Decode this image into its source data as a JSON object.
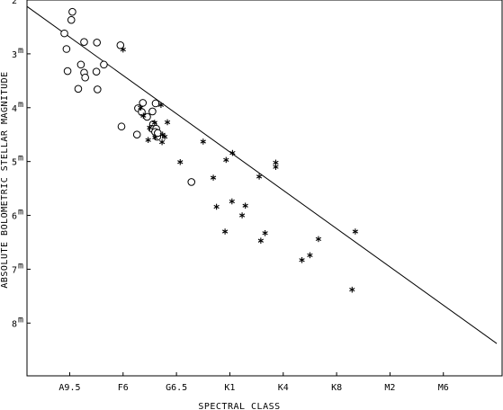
{
  "chart_data": {
    "type": "scatter",
    "title": "",
    "xlabel": "SPECTRAL CLASS",
    "ylabel": "ABSOLUTE BOLOMETRIC STELLAR MAGNITUDE",
    "x_ticks": [
      "A9.5",
      "F6",
      "G6.5",
      "K1",
      "K4",
      "K8",
      "M2",
      "M6"
    ],
    "x_range": [
      -0.8,
      8.1
    ],
    "y_ticks": [
      {
        "value": 2,
        "label": "2",
        "unit": "m"
      },
      {
        "value": 3,
        "label": "3",
        "unit": "m"
      },
      {
        "value": 4,
        "label": "4",
        "unit": "m"
      },
      {
        "value": 5,
        "label": "5",
        "unit": "m"
      },
      {
        "value": 6,
        "label": "6",
        "unit": "m"
      },
      {
        "value": 7,
        "label": "7",
        "unit": "m"
      },
      {
        "value": 8,
        "label": "8",
        "unit": "m"
      }
    ],
    "y_range": [
      2.0,
      8.98
    ],
    "y_inverted": true,
    "grid": false,
    "series": [
      {
        "marker": "circle",
        "points": [
          [
            0.05,
            2.22
          ],
          [
            0.03,
            2.37
          ],
          [
            -0.1,
            2.62
          ],
          [
            -0.06,
            2.91
          ],
          [
            -0.04,
            3.32
          ],
          [
            0.21,
            3.2
          ],
          [
            0.27,
            3.35
          ],
          [
            0.29,
            3.44
          ],
          [
            0.16,
            3.65
          ],
          [
            0.5,
            3.33
          ],
          [
            0.52,
            3.66
          ],
          [
            0.64,
            3.2
          ],
          [
            0.27,
            2.78
          ],
          [
            0.51,
            2.79
          ],
          [
            0.95,
            2.84
          ],
          [
            1.37,
            3.91
          ],
          [
            1.61,
            3.92
          ],
          [
            1.28,
            4.01
          ],
          [
            1.35,
            4.08
          ],
          [
            1.45,
            4.17
          ],
          [
            1.56,
            4.31
          ],
          [
            1.54,
            4.39
          ],
          [
            1.62,
            4.39
          ],
          [
            1.6,
            4.45
          ],
          [
            1.64,
            4.54
          ],
          [
            1.65,
            4.47
          ],
          [
            1.55,
            4.07
          ],
          [
            1.26,
            4.5
          ],
          [
            0.97,
            4.35
          ],
          [
            2.28,
            5.38
          ]
        ]
      },
      {
        "marker": "asterisk",
        "points": [
          [
            1.0,
            2.92
          ],
          [
            1.33,
            4.0
          ],
          [
            1.38,
            4.15
          ],
          [
            1.5,
            4.37
          ],
          [
            1.59,
            4.28
          ],
          [
            1.6,
            4.55
          ],
          [
            1.71,
            3.95
          ],
          [
            1.74,
            4.5
          ],
          [
            1.78,
            4.54
          ],
          [
            1.83,
            4.27
          ],
          [
            1.47,
            4.6
          ],
          [
            1.73,
            4.64
          ],
          [
            2.07,
            5.01
          ],
          [
            2.5,
            4.63
          ],
          [
            2.69,
            5.3
          ],
          [
            2.75,
            5.84
          ],
          [
            2.93,
            4.97
          ],
          [
            3.05,
            4.84
          ],
          [
            2.91,
            6.3
          ],
          [
            3.04,
            5.74
          ],
          [
            3.23,
            6.0
          ],
          [
            3.29,
            5.82
          ],
          [
            3.55,
            5.28
          ],
          [
            3.58,
            6.47
          ],
          [
            3.66,
            6.33
          ],
          [
            3.86,
            5.02
          ],
          [
            3.86,
            5.1
          ],
          [
            4.35,
            6.83
          ],
          [
            4.5,
            6.74
          ],
          [
            4.66,
            6.44
          ],
          [
            5.29,
            7.38
          ],
          [
            5.35,
            6.3
          ]
        ]
      }
    ],
    "fit_line": {
      "x": [
        -0.8,
        8.0
      ],
      "y": [
        2.12,
        8.38
      ]
    }
  }
}
